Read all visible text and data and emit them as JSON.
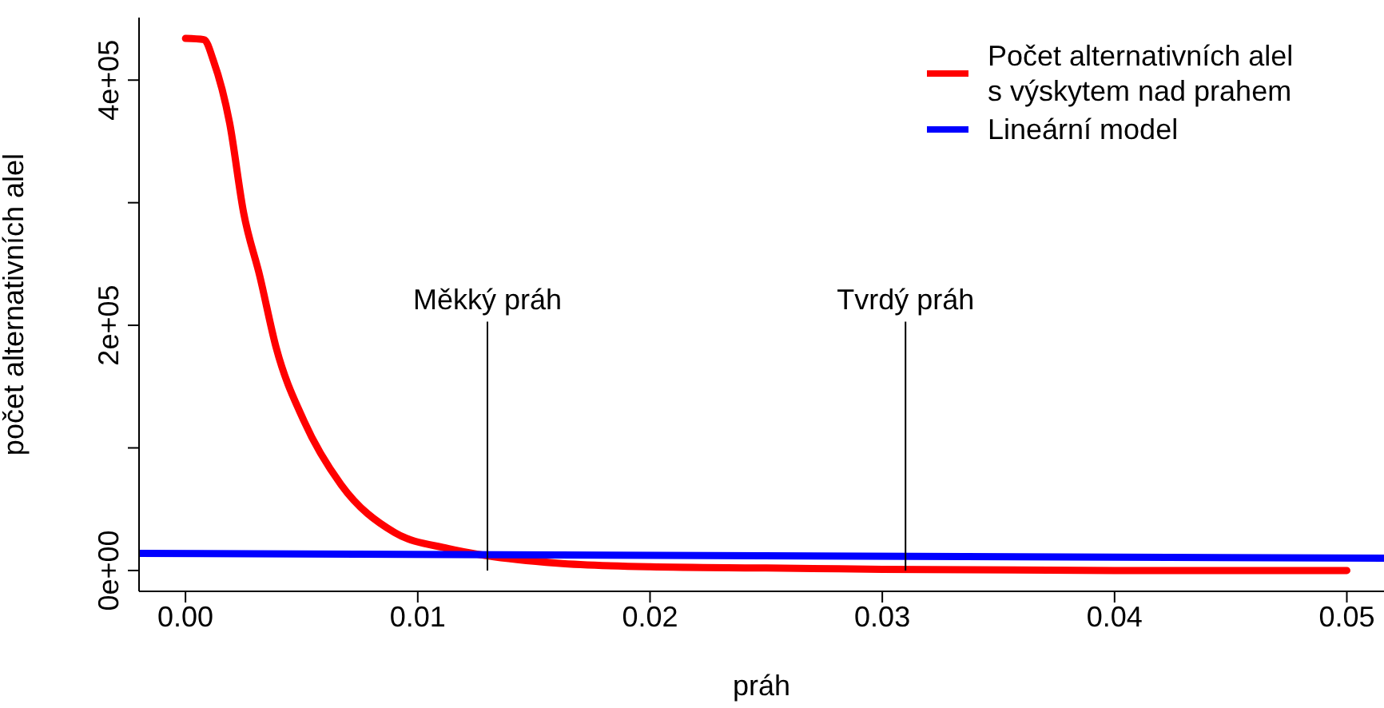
{
  "chart_data": {
    "type": "line",
    "xlabel": "práh",
    "ylabel": "počet alternativních alel",
    "xlim": [
      -0.002,
      0.0516
    ],
    "ylim": [
      -17000,
      451000
    ],
    "xticks": [
      {
        "value": 0,
        "label": "0.00"
      },
      {
        "value": 0.01,
        "label": "0.01"
      },
      {
        "value": 0.02,
        "label": "0.02"
      },
      {
        "value": 0.03,
        "label": "0.03"
      },
      {
        "value": 0.04,
        "label": "0.04"
      },
      {
        "value": 0.05,
        "label": "0.05"
      }
    ],
    "yticks": [
      {
        "value": 0,
        "label": "0e+00"
      },
      {
        "value": 100000,
        "label": null
      },
      {
        "value": 200000,
        "label": "2e+05"
      },
      {
        "value": 300000,
        "label": null
      },
      {
        "value": 400000,
        "label": "4e+05"
      }
    ],
    "series": [
      {
        "name": "Počet alternativních alel\ns výskytem nad prahem",
        "color": "#ff0000",
        "x": [
          0,
          0.0008,
          0.0012,
          0.0019,
          0.0025,
          0.0032,
          0.0039,
          0.0051,
          0.0067,
          0.009,
          0.0113,
          0.013,
          0.016,
          0.02,
          0.025,
          0.03,
          0.04,
          0.05
        ],
        "values": [
          434000,
          433000,
          416000,
          365000,
          292000,
          240000,
          182000,
          122000,
          70000,
          31000,
          18000,
          12000,
          6000,
          3000,
          2000,
          1000,
          0,
          0
        ]
      },
      {
        "name": "Lineární model",
        "color": "#0000ff",
        "x": [
          -0.002,
          0.0516
        ],
        "values": [
          14000,
          10000
        ]
      }
    ],
    "ref_lines": [
      {
        "axis": "x",
        "value": 0.013,
        "label": "Měkký práh",
        "color": "#000000"
      },
      {
        "axis": "x",
        "value": 0.031,
        "label": "Tvrdý práh",
        "color": "#000000"
      }
    ],
    "legend": "top right",
    "marker": "none",
    "line_style": "solid",
    "grid": false
  }
}
